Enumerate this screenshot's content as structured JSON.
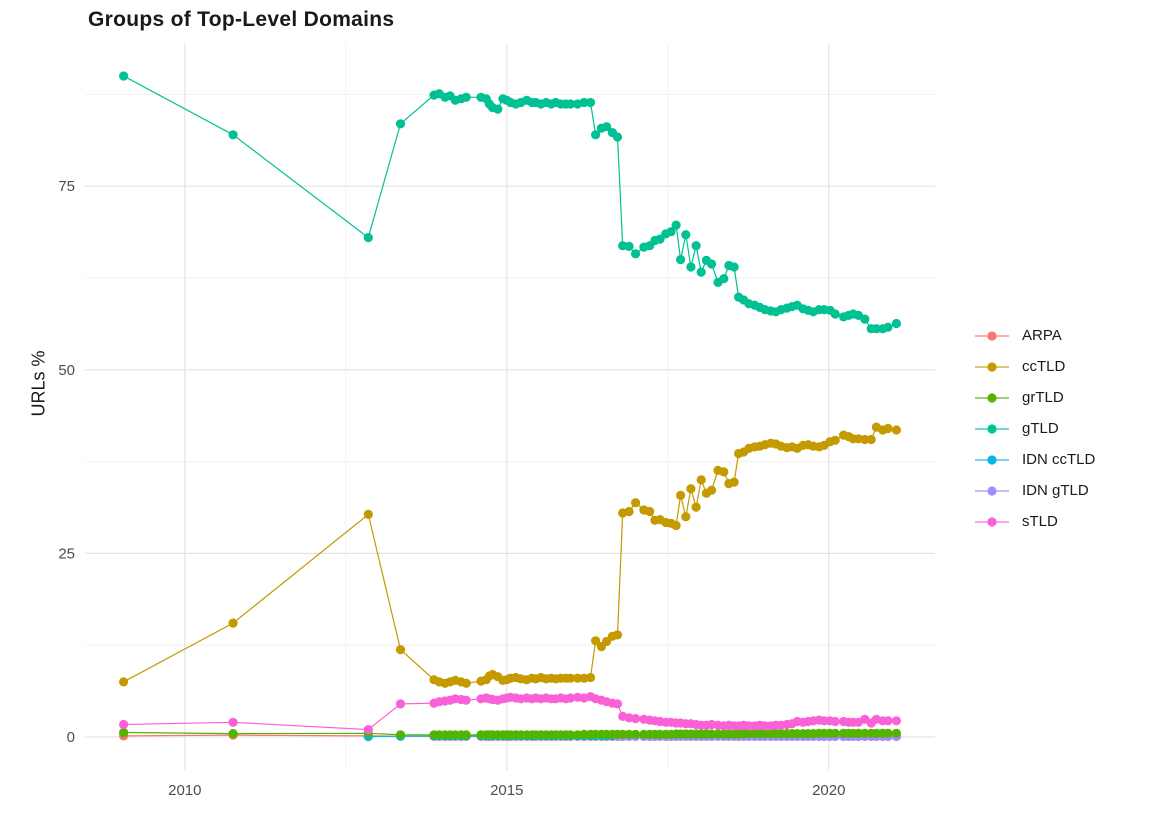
{
  "title": "Groups of Top-Level Domains",
  "axes": {
    "y_label": "URLs %",
    "x_ticks": [
      {
        "value": 2010,
        "label": "2010"
      },
      {
        "value": 2015,
        "label": "2015"
      },
      {
        "value": 2020,
        "label": "2020"
      }
    ],
    "y_ticks": [
      {
        "value": 0,
        "label": "0"
      },
      {
        "value": 25,
        "label": "25"
      },
      {
        "value": 50,
        "label": "50"
      },
      {
        "value": 75,
        "label": "75"
      }
    ],
    "x_minor": [
      2012.5,
      2017.5
    ],
    "y_minor": [
      12.5,
      37.5,
      62.5,
      87.5
    ]
  },
  "style": {
    "background": "#ffffff",
    "grid_major_color": "#e4e4e4",
    "grid_minor_color": "#f1f1f1",
    "tick_text_color": "#4d4d4d",
    "title_color": "#1a1a1a"
  },
  "chart_data": {
    "type": "line",
    "title": "Groups of Top-Level Domains",
    "xlabel": "",
    "ylabel": "URLs %",
    "xlim": [
      2008.45,
      2021.65
    ],
    "ylim": [
      -4.5,
      94.5
    ],
    "grid": true,
    "legend_position": "right",
    "legend_order": [
      "ARPA",
      "ccTLD",
      "grTLD",
      "gTLD",
      "IDN ccTLD",
      "IDN gTLD",
      "sTLD"
    ],
    "draw_order": [
      "ARPA",
      "IDN ccTLD",
      "IDN gTLD",
      "grTLD",
      "ccTLD",
      "gTLD",
      "sTLD"
    ],
    "x": [
      2009.05,
      2010.75,
      2012.85,
      2013.35,
      2013.87,
      2013.95,
      2014.04,
      2014.12,
      2014.2,
      2014.29,
      2014.37,
      2014.6,
      2014.68,
      2014.73,
      2014.78,
      2014.86,
      2014.94,
      2015.0,
      2015.06,
      2015.14,
      2015.22,
      2015.31,
      2015.39,
      2015.45,
      2015.53,
      2015.61,
      2015.69,
      2015.76,
      2015.84,
      2015.92,
      2015.99,
      2016.1,
      2016.2,
      2016.3,
      2016.38,
      2016.47,
      2016.55,
      2016.64,
      2016.72,
      2016.8,
      2016.9,
      2017.0,
      2017.13,
      2017.22,
      2017.3,
      2017.38,
      2017.47,
      2017.55,
      2017.63,
      2017.7,
      2017.78,
      2017.86,
      2017.94,
      2018.02,
      2018.1,
      2018.18,
      2018.28,
      2018.37,
      2018.45,
      2018.53,
      2018.6,
      2018.68,
      2018.76,
      2018.85,
      2018.93,
      2019.01,
      2019.1,
      2019.18,
      2019.26,
      2019.35,
      2019.43,
      2019.51,
      2019.6,
      2019.68,
      2019.76,
      2019.85,
      2019.93,
      2020.02,
      2020.1,
      2020.23,
      2020.31,
      2020.38,
      2020.46,
      2020.56,
      2020.66,
      2020.74,
      2020.84,
      2020.92,
      2021.05
    ],
    "series": [
      {
        "name": "ARPA",
        "color": "#F8766D",
        "values": [
          0.15,
          0.25,
          0.15,
          0.1,
          0.08,
          0.08,
          0.08,
          0.08,
          0.08,
          0.08,
          0.08,
          0.08,
          0.08,
          0.08,
          0.08,
          0.08,
          0.08,
          0.08,
          0.08,
          0.08,
          0.08,
          0.08,
          0.08,
          0.08,
          0.08,
          0.08,
          0.08,
          0.08,
          0.08,
          0.08,
          0.08,
          0.08,
          0.08,
          0.08,
          0.08,
          0.08,
          0.08,
          0.08,
          0.08,
          0.08,
          0.08,
          0.08,
          0.08,
          0.08,
          0.08,
          0.08,
          0.08,
          0.08,
          0.08,
          0.08,
          0.08,
          0.08,
          0.08,
          0.08,
          0.08,
          0.08,
          0.08,
          0.08,
          0.08,
          0.08,
          0.08,
          0.08,
          0.08,
          0.08,
          0.08,
          0.08,
          0.08,
          0.08,
          0.08,
          0.08,
          0.08,
          0.08,
          0.08,
          0.08,
          0.08,
          0.08,
          0.08,
          0.08,
          0.08,
          0.08,
          0.08,
          0.08,
          0.08,
          0.08,
          0.08,
          0.08,
          0.08,
          0.08,
          0.08
        ]
      },
      {
        "name": "ccTLD",
        "color": "#C49A00",
        "values": [
          7.5,
          15.5,
          30.3,
          11.9,
          7.8,
          7.5,
          7.3,
          7.5,
          7.7,
          7.5,
          7.3,
          7.6,
          7.8,
          8.3,
          8.5,
          8.2,
          7.7,
          7.8,
          8.0,
          8.1,
          7.9,
          7.8,
          8.0,
          7.9,
          8.1,
          7.9,
          8.0,
          7.9,
          8.0,
          8.0,
          8.0,
          8.0,
          8.0,
          8.1,
          13.1,
          12.3,
          13.0,
          13.7,
          13.9,
          30.5,
          30.7,
          31.9,
          30.9,
          30.7,
          29.5,
          29.6,
          29.2,
          29.1,
          28.8,
          32.9,
          30.0,
          33.8,
          31.3,
          35.0,
          33.2,
          33.6,
          36.3,
          36.1,
          34.5,
          34.7,
          38.6,
          38.8,
          39.3,
          39.5,
          39.6,
          39.8,
          40.0,
          39.9,
          39.6,
          39.4,
          39.5,
          39.3,
          39.7,
          39.8,
          39.6,
          39.5,
          39.7,
          40.2,
          40.4,
          41.1,
          40.9,
          40.6,
          40.6,
          40.5,
          40.5,
          42.2,
          41.8,
          42.0,
          41.8
        ]
      },
      {
        "name": "grTLD",
        "color": "#53B400",
        "values": [
          0.6,
          0.45,
          0.5,
          0.3,
          0.3,
          0.3,
          0.3,
          0.3,
          0.3,
          0.3,
          0.3,
          0.3,
          0.3,
          0.3,
          0.3,
          0.3,
          0.3,
          0.3,
          0.3,
          0.3,
          0.3,
          0.3,
          0.3,
          0.3,
          0.3,
          0.3,
          0.3,
          0.3,
          0.3,
          0.3,
          0.3,
          0.3,
          0.35,
          0.35,
          0.35,
          0.35,
          0.35,
          0.35,
          0.35,
          0.35,
          0.35,
          0.35,
          0.35,
          0.35,
          0.35,
          0.35,
          0.35,
          0.35,
          0.4,
          0.4,
          0.4,
          0.4,
          0.4,
          0.4,
          0.4,
          0.4,
          0.4,
          0.4,
          0.4,
          0.4,
          0.4,
          0.45,
          0.45,
          0.45,
          0.45,
          0.45,
          0.45,
          0.45,
          0.45,
          0.45,
          0.45,
          0.45,
          0.45,
          0.45,
          0.45,
          0.5,
          0.5,
          0.5,
          0.5,
          0.5,
          0.5,
          0.5,
          0.5,
          0.5,
          0.5,
          0.5,
          0.5,
          0.5,
          0.5
        ]
      },
      {
        "name": "gTLD",
        "color": "#00C094",
        "values": [
          90.0,
          82.0,
          68.0,
          83.5,
          87.4,
          87.6,
          87.1,
          87.3,
          86.7,
          86.9,
          87.1,
          87.1,
          86.9,
          86.2,
          85.7,
          85.5,
          86.9,
          86.7,
          86.4,
          86.2,
          86.4,
          86.7,
          86.4,
          86.4,
          86.2,
          86.4,
          86.2,
          86.4,
          86.2,
          86.2,
          86.2,
          86.2,
          86.4,
          86.4,
          82.0,
          82.9,
          83.1,
          82.3,
          81.7,
          66.9,
          66.8,
          65.8,
          66.7,
          66.9,
          67.6,
          67.8,
          68.5,
          68.8,
          69.7,
          65.0,
          68.4,
          64.0,
          66.9,
          63.3,
          64.9,
          64.4,
          61.9,
          62.4,
          64.2,
          64.0,
          59.9,
          59.5,
          59.0,
          58.8,
          58.5,
          58.2,
          58.0,
          57.9,
          58.2,
          58.4,
          58.6,
          58.8,
          58.3,
          58.1,
          57.9,
          58.2,
          58.2,
          58.1,
          57.6,
          57.2,
          57.4,
          57.6,
          57.4,
          56.9,
          55.6,
          55.6,
          55.6,
          55.8,
          56.3
        ]
      },
      {
        "name": "IDN ccTLD",
        "color": "#00B6EB",
        "values": [
          null,
          null,
          0.05,
          0.1,
          0.15,
          0.15,
          0.15,
          0.15,
          0.15,
          0.15,
          0.15,
          0.15,
          0.15,
          0.15,
          0.15,
          0.15,
          0.15,
          0.15,
          0.15,
          0.15,
          0.15,
          0.15,
          0.15,
          0.15,
          0.15,
          0.15,
          0.15,
          0.15,
          0.15,
          0.15,
          0.15,
          0.15,
          0.15,
          0.15,
          0.15,
          0.15,
          0.15,
          0.15,
          0.15,
          0.1,
          0.1,
          0.1,
          0.1,
          0.1,
          0.1,
          0.1,
          0.1,
          0.1,
          0.1,
          0.1,
          0.1,
          0.1,
          0.1,
          0.1,
          0.1,
          0.1,
          0.1,
          0.1,
          0.1,
          0.1,
          0.1,
          0.1,
          0.1,
          0.1,
          0.1,
          0.1,
          0.1,
          0.1,
          0.1,
          0.1,
          0.1,
          0.1,
          0.1,
          0.1,
          0.1,
          0.1,
          0.1,
          0.1,
          0.1,
          0.1,
          0.1,
          0.1,
          0.1,
          0.1,
          0.1,
          0.1,
          0.1,
          0.1,
          0.1
        ]
      },
      {
        "name": "IDN gTLD",
        "color": "#A58AFF",
        "values": [
          null,
          null,
          null,
          null,
          null,
          null,
          null,
          null,
          null,
          null,
          null,
          null,
          null,
          null,
          null,
          null,
          null,
          null,
          null,
          null,
          null,
          null,
          null,
          null,
          null,
          null,
          null,
          null,
          null,
          null,
          null,
          null,
          null,
          null,
          null,
          null,
          null,
          null,
          0.1,
          0.1,
          0.1,
          0.1,
          0.1,
          0.1,
          0.1,
          0.1,
          0.1,
          0.1,
          0.1,
          0.1,
          0.1,
          0.1,
          0.1,
          0.1,
          0.1,
          0.1,
          0.1,
          0.1,
          0.1,
          0.1,
          0.1,
          0.1,
          0.1,
          0.1,
          0.1,
          0.1,
          0.1,
          0.1,
          0.1,
          0.1,
          0.1,
          0.1,
          0.1,
          0.1,
          0.1,
          0.1,
          0.1,
          0.1,
          0.1,
          0.1,
          0.1,
          0.1,
          0.1,
          0.1,
          0.1,
          0.1,
          0.1,
          0.1,
          0.1
        ]
      },
      {
        "name": "sTLD",
        "color": "#FB61D7",
        "values": [
          1.7,
          2.0,
          1.0,
          4.5,
          4.6,
          4.8,
          4.9,
          5.0,
          5.2,
          5.1,
          5.0,
          5.2,
          5.3,
          5.2,
          5.1,
          5.0,
          5.2,
          5.3,
          5.4,
          5.3,
          5.2,
          5.3,
          5.2,
          5.3,
          5.2,
          5.3,
          5.2,
          5.2,
          5.3,
          5.2,
          5.3,
          5.4,
          5.3,
          5.5,
          5.2,
          5.0,
          4.8,
          4.6,
          4.5,
          2.8,
          2.6,
          2.5,
          2.4,
          2.3,
          2.2,
          2.1,
          2.0,
          2.0,
          1.9,
          1.9,
          1.8,
          1.8,
          1.7,
          1.6,
          1.6,
          1.7,
          1.6,
          1.5,
          1.6,
          1.5,
          1.5,
          1.6,
          1.5,
          1.5,
          1.6,
          1.5,
          1.5,
          1.6,
          1.6,
          1.7,
          1.8,
          2.1,
          2.0,
          2.1,
          2.2,
          2.3,
          2.2,
          2.2,
          2.1,
          2.1,
          2.0,
          2.0,
          2.0,
          2.4,
          1.9,
          2.4,
          2.2,
          2.2,
          2.2
        ]
      }
    ]
  }
}
